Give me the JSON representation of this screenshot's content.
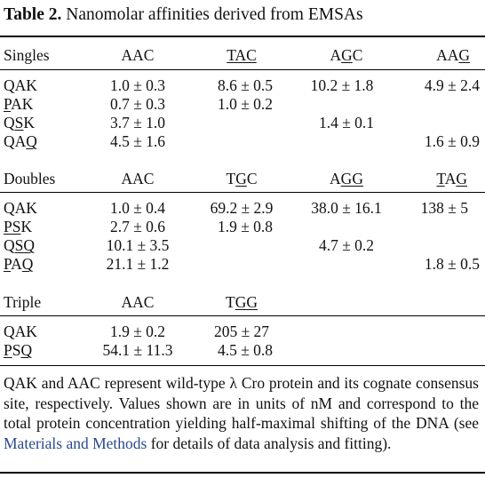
{
  "title": {
    "label": "Table 2.",
    "text": "Nanomolar affinities derived from EMSAs"
  },
  "sections": {
    "singles": {
      "label": "Singles",
      "columns": [
        "AAC",
        "TAC",
        "AGC",
        "AAG"
      ],
      "rows": [
        {
          "name": "QAK",
          "v1": "1.0 ± 0.3",
          "v2": "8.6 ± 0.5",
          "v3": "10.2 ± 1.8",
          "v4": "4.9 ± 2.4"
        },
        {
          "name": "PAK",
          "v1": "0.7 ± 0.3",
          "v2": "1.0 ± 0.2",
          "v3": "",
          "v4": ""
        },
        {
          "name": "QSK",
          "v1": "3.7 ± 1.0",
          "v2": "",
          "v3": "1.4 ± 0.1",
          "v4": ""
        },
        {
          "name": "QAQ",
          "v1": "4.5 ± 1.6",
          "v2": "",
          "v3": "",
          "v4": "1.6 ± 0.9"
        }
      ]
    },
    "doubles": {
      "label": "Doubles",
      "columns": [
        "AAC",
        "TGC",
        "AGG",
        "TAG"
      ],
      "rows": [
        {
          "name": "QAK",
          "v1": "1.0 ± 0.4",
          "v2": "69.2 ± 2.9",
          "v3": "38.0 ± 16.1",
          "v4": "138 ± 5"
        },
        {
          "name": "PSK",
          "v1": "2.7 ± 0.6",
          "v2": "1.9 ± 0.8",
          "v3": "",
          "v4": ""
        },
        {
          "name": "QSQ",
          "v1": "10.1 ± 3.5",
          "v2": "",
          "v3": "4.7 ± 0.2",
          "v4": ""
        },
        {
          "name": "PAQ",
          "v1": "21.1 ± 1.2",
          "v2": "",
          "v3": "",
          "v4": "1.8 ± 0.5"
        }
      ]
    },
    "triple": {
      "label": "Triple",
      "columns": [
        "AAC",
        "TGG"
      ],
      "rows": [
        {
          "name": "QAK",
          "v1": "1.9 ± 0.2",
          "v2": "205 ± 27"
        },
        {
          "name": "PSQ",
          "v1": "54.1 ± 11.3",
          "v2": "4.5 ± 0.8"
        }
      ]
    }
  },
  "footnote": {
    "text_before": "QAK and AAC represent wild-type λ Cro protein and its cognate consensus site, respectively. Values shown are in units of nM and correspond to the total protein concentration yielding half-maximal shifting of the DNA (see ",
    "link": "Materials and Methods",
    "text_after": " for details of data analysis and fitting).",
    "link_color": "#2a4a8a"
  }
}
